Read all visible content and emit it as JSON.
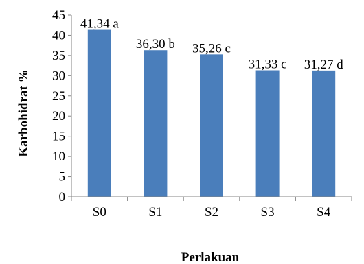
{
  "chart_data": {
    "type": "bar",
    "categories": [
      "S0",
      "S1",
      "S2",
      "S3",
      "S4"
    ],
    "values": [
      41.34,
      36.3,
      35.26,
      31.33,
      31.27
    ],
    "data_labels": [
      "41,34 a",
      "36,30 b",
      "35,26 c",
      "31,33 c",
      "31,27 d"
    ],
    "xlabel": "Perlakuan",
    "ylabel": "Karbohidrat %",
    "ylim": [
      0,
      45
    ],
    "yticks": [
      0,
      5,
      10,
      15,
      20,
      25,
      30,
      35,
      40,
      45
    ],
    "grid": false,
    "legend": "none",
    "bar_color": "#4a7ebb"
  }
}
